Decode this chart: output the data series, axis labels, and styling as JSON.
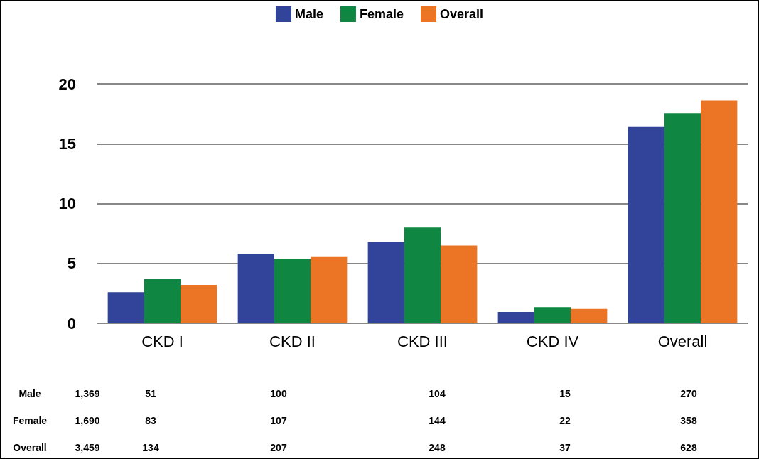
{
  "chart_data": {
    "type": "bar",
    "categories": [
      "CKD I",
      "CKD II",
      "CKD III",
      "CKD IV",
      "Overall"
    ],
    "series": [
      {
        "name": "Male",
        "color": "#31449a",
        "values": [
          2.6,
          5.8,
          6.8,
          0.95,
          16.4
        ]
      },
      {
        "name": "Female",
        "color": "#0f8742",
        "values": [
          3.7,
          5.4,
          8.0,
          1.35,
          17.55
        ]
      },
      {
        "name": "Overall",
        "color": "#ec7425",
        "values": [
          3.2,
          5.6,
          6.5,
          1.2,
          18.6
        ]
      }
    ],
    "ylim": [
      0,
      20
    ],
    "yticks": [
      0,
      5,
      10,
      15,
      20
    ],
    "grid": "y",
    "legend": "top",
    "annotations": [
      "Male",
      "1,369",
      "51",
      "100",
      "104",
      "15",
      "270",
      "Female",
      "1,690",
      "83",
      "107",
      "144",
      "22",
      "358",
      "Overall",
      "3,459",
      "134",
      "207",
      "248",
      "37",
      "628"
    ]
  }
}
